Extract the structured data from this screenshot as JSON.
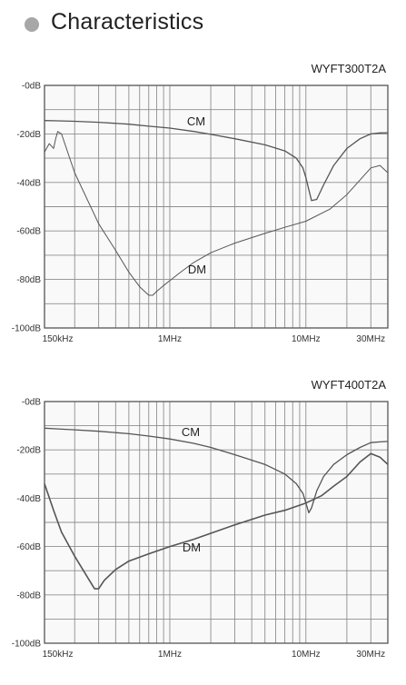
{
  "page": {
    "title": "Characteristics"
  },
  "chart_data": [
    {
      "type": "line",
      "title": "WYFT300T2A",
      "x_scale": "log",
      "x_unit": "Hz",
      "xlim": [
        120000,
        40000000
      ],
      "ylim": [
        -100,
        0
      ],
      "y_unit": "dB",
      "y_ticks": [
        "-0dB",
        "-20dB",
        "-40dB",
        "-60dB",
        "-80dB",
        "-100dB"
      ],
      "x_ticks": [
        {
          "value": 150000,
          "label": "150kHz"
        },
        {
          "value": 1000000,
          "label": "1MHz"
        },
        {
          "value": 10000000,
          "label": "10MHz"
        },
        {
          "value": 30000000,
          "label": "30MHz"
        }
      ],
      "grid": true,
      "series": [
        {
          "name": "CM",
          "color": "#555555",
          "x": [
            120000,
            150000,
            200000,
            300000,
            500000,
            700000,
            1000000,
            1500000,
            2000000,
            3000000,
            5000000,
            7000000,
            8500000,
            9500000,
            10000000,
            10500000,
            11000000,
            12000000,
            13500000,
            16000000,
            20000000,
            25000000,
            30000000,
            35000000,
            40000000
          ],
          "y": [
            -14.5,
            -14.6,
            -14.8,
            -15.2,
            -16,
            -16.8,
            -17.6,
            -19,
            -20.2,
            -22,
            -24.5,
            -27,
            -30,
            -34,
            -38,
            -43,
            -47.5,
            -47,
            -41,
            -33,
            -26,
            -22,
            -20,
            -19.6,
            -19.5
          ]
        },
        {
          "name": "DM",
          "color": "#555555",
          "x": [
            120000,
            130000,
            135000,
            140000,
            145000,
            150000,
            160000,
            200000,
            300000,
            400000,
            500000,
            600000,
            700000,
            750000,
            800000,
            900000,
            1000000,
            1200000,
            1500000,
            2000000,
            3000000,
            5000000,
            7000000,
            10000000,
            15000000,
            20000000,
            25000000,
            30000000,
            35000000,
            40000000
          ],
          "y": [
            -27.5,
            -24,
            -25,
            -26,
            -22,
            -19,
            -20,
            -36,
            -57,
            -68,
            -77,
            -83,
            -86.5,
            -86.5,
            -85,
            -82.5,
            -80.5,
            -77,
            -73,
            -69,
            -65,
            -61,
            -58.5,
            -56,
            -51,
            -45,
            -39,
            -34,
            -33,
            -36
          ]
        }
      ]
    },
    {
      "type": "line",
      "title": "WYFT400T2A",
      "x_scale": "log",
      "x_unit": "Hz",
      "xlim": [
        120000,
        40000000
      ],
      "ylim": [
        -100,
        0
      ],
      "y_unit": "dB",
      "y_ticks": [
        "-0dB",
        "-20dB",
        "-40dB",
        "-60dB",
        "-80dB",
        "-100dB"
      ],
      "x_ticks": [
        {
          "value": 150000,
          "label": "150kHz"
        },
        {
          "value": 1000000,
          "label": "1MHz"
        },
        {
          "value": 10000000,
          "label": "10MHz"
        },
        {
          "value": 30000000,
          "label": "30MHz"
        }
      ],
      "grid": true,
      "series": [
        {
          "name": "CM",
          "color": "#555555",
          "x": [
            120000,
            150000,
            200000,
            300000,
            500000,
            700000,
            1000000,
            1500000,
            2000000,
            3000000,
            5000000,
            7000000,
            8500000,
            9500000,
            10000000,
            10500000,
            11000000,
            12000000,
            13500000,
            16000000,
            20000000,
            25000000,
            30000000,
            35000000,
            40000000
          ],
          "y": [
            -11,
            -11.3,
            -11.7,
            -12.3,
            -13.3,
            -14.3,
            -15.5,
            -17.3,
            -19,
            -22,
            -26,
            -30,
            -34,
            -38,
            -42,
            -46,
            -44,
            -37,
            -31,
            -26,
            -22,
            -19,
            -17,
            -16.7,
            -16.5
          ]
        },
        {
          "name": "DM",
          "color": "#555555",
          "x": [
            120000,
            140000,
            160000,
            200000,
            250000,
            280000,
            300000,
            330000,
            400000,
            500000,
            700000,
            1000000,
            1500000,
            2000000,
            3000000,
            5000000,
            7000000,
            10000000,
            13000000,
            16000000,
            20000000,
            25000000,
            30000000,
            35000000,
            40000000
          ],
          "y": [
            -34,
            -45,
            -54,
            -64,
            -73,
            -77.5,
            -77.5,
            -74,
            -69.5,
            -66,
            -63,
            -60,
            -57,
            -54.5,
            -51,
            -47,
            -45,
            -42,
            -39,
            -35,
            -31,
            -25,
            -21.5,
            -23,
            -26
          ]
        }
      ]
    }
  ]
}
